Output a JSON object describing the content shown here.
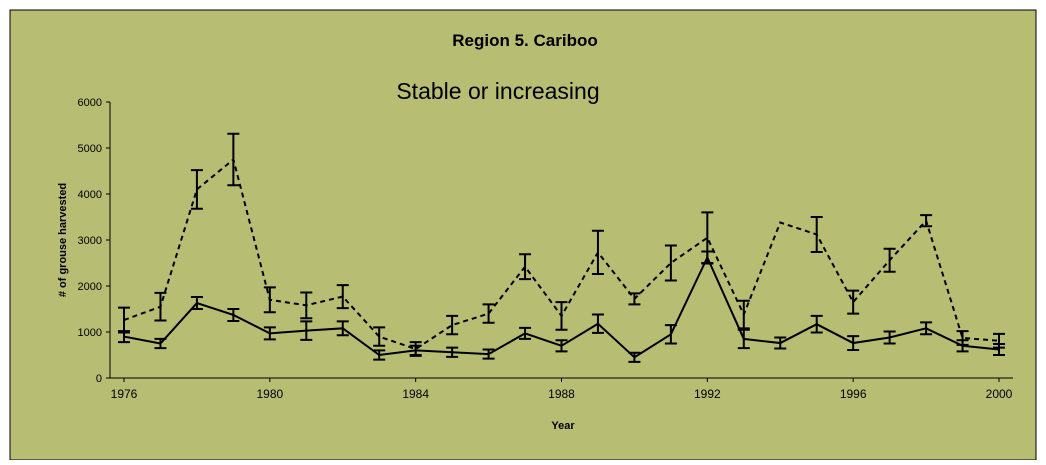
{
  "chart_data": {
    "type": "line",
    "title": "Region 5. Cariboo",
    "subtitle": "Stable or increasing",
    "x_label": "Year",
    "y_label": "# of grouse harvested",
    "x": [
      1976,
      1977,
      1978,
      1979,
      1980,
      1981,
      1982,
      1983,
      1984,
      1985,
      1986,
      1987,
      1988,
      1989,
      1990,
      1991,
      1992,
      1993,
      1994,
      1995,
      1996,
      1997,
      1998,
      1999,
      2000
    ],
    "xlim": [
      1976,
      2000
    ],
    "xticks": [
      1976,
      1980,
      1984,
      1988,
      1992,
      1996,
      2000
    ],
    "ylim": [
      0,
      6000
    ],
    "yticks": [
      0,
      1000,
      2000,
      3000,
      4000,
      5000,
      6000
    ],
    "series": [
      {
        "color": "#000000",
        "line_style": "solid",
        "values": [
          900,
          750,
          1630,
          1370,
          970,
          1030,
          1080,
          500,
          600,
          560,
          520,
          970,
          700,
          1180,
          450,
          950,
          2620,
          850,
          760,
          1170,
          760,
          880,
          1080,
          700,
          620
        ],
        "errors": [
          120,
          100,
          130,
          130,
          130,
          200,
          150,
          100,
          100,
          100,
          100,
          120,
          120,
          200,
          100,
          200,
          130,
          200,
          120,
          180,
          150,
          130,
          130,
          120,
          120
        ]
      },
      {
        "color": "#000000",
        "line_style": "dashed",
        "values": [
          1260,
          1550,
          4100,
          4750,
          1700,
          1580,
          1770,
          900,
          630,
          1150,
          1400,
          2420,
          1350,
          2730,
          1720,
          2500,
          3050,
          1380,
          3380,
          3120,
          1650,
          2560,
          3420,
          870,
          810
        ],
        "errors": [
          270,
          300,
          420,
          560,
          270,
          280,
          250,
          200,
          150,
          200,
          200,
          270,
          300,
          470,
          120,
          380,
          550,
          300,
          null,
          380,
          250,
          250,
          120,
          150,
          150
        ]
      }
    ]
  }
}
